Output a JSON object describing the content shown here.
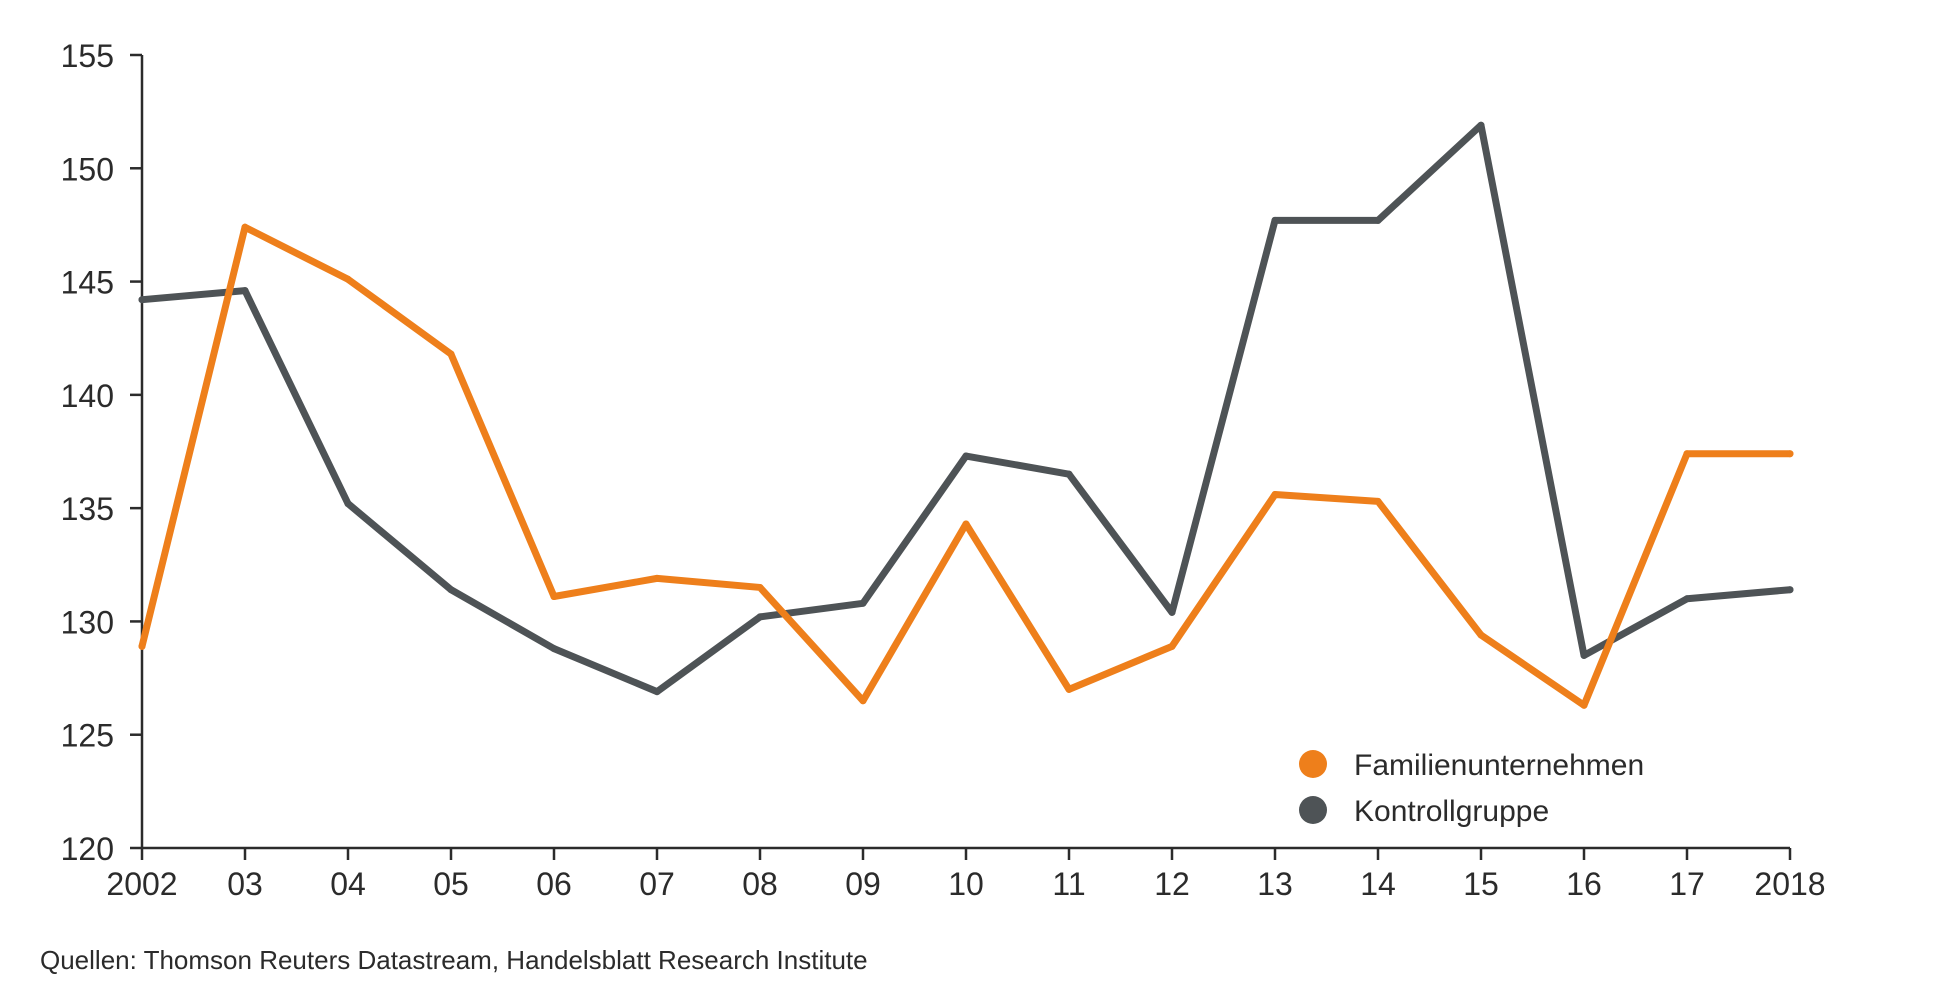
{
  "chart_data": {
    "type": "line",
    "x": [
      "2002",
      "03",
      "04",
      "05",
      "06",
      "07",
      "08",
      "09",
      "10",
      "11",
      "12",
      "13",
      "14",
      "15",
      "16",
      "17",
      "2018"
    ],
    "series": [
      {
        "name": "Familienunternehmen",
        "color": "#EE7F1B",
        "values": [
          128.9,
          147.4,
          145.1,
          141.8,
          131.1,
          131.9,
          131.5,
          126.5,
          134.3,
          127.0,
          128.9,
          135.6,
          135.3,
          129.4,
          126.3,
          137.4,
          137.4
        ]
      },
      {
        "name": "Kontrollgruppe",
        "color": "#4E5356",
        "values": [
          144.2,
          144.6,
          135.2,
          131.4,
          128.8,
          126.9,
          130.2,
          130.8,
          137.3,
          136.5,
          130.4,
          147.7,
          147.7,
          151.9,
          128.5,
          131.0,
          131.4
        ]
      }
    ],
    "ylim": [
      120,
      155
    ],
    "yticks": [
      120,
      125,
      130,
      135,
      140,
      145,
      150,
      155
    ],
    "legend_position": "bottom-right",
    "grid": false,
    "source": "Quellen: Thomson Reuters Datastream, Handelsblatt Research Institute"
  }
}
